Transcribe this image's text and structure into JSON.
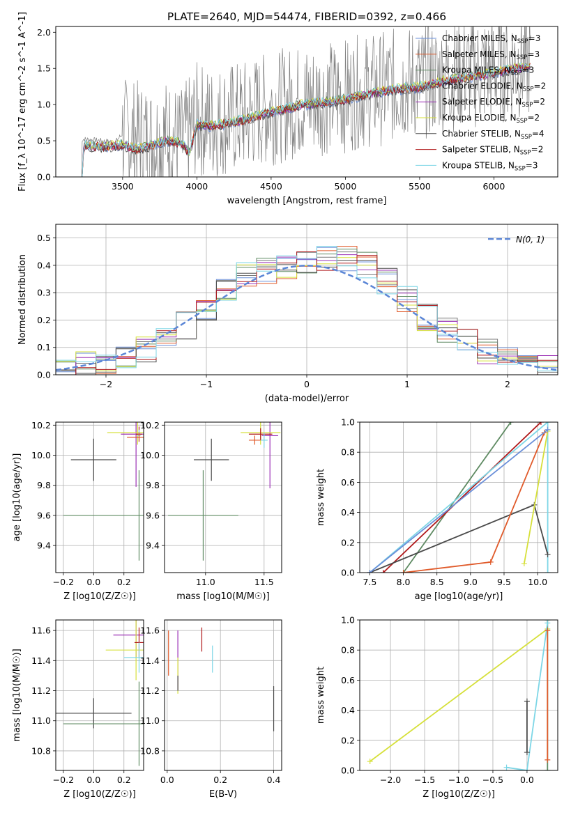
{
  "chart_data": [
    {
      "id": "spectrum",
      "type": "line",
      "title": "PLATE=2640, MJD=54474, FIBERID=0392, z=0.466",
      "xlabel": "wavelength [Angstrom, rest frame]",
      "ylabel": "Flux [f_λ 10^-17 erg cm^-2 s^-1 A^-1]",
      "xlim": [
        3050,
        6430
      ],
      "ylim": [
        0,
        2.08
      ],
      "xticks": [
        "3500",
        "4000",
        "4500",
        "5000",
        "5500",
        "6000"
      ],
      "yticks": [
        "0.0",
        "0.5",
        "1.0",
        "1.5",
        "2.0"
      ],
      "grid": false,
      "legend_position": "upper-right",
      "legend": [
        {
          "label": "Chabrier MILES, N_SSP=3",
          "color": "#6a8fd9"
        },
        {
          "label": "Salpeter MILES, N_SSP=3",
          "color": "#e05a2a"
        },
        {
          "label": "Kroupa MILES, N_SSP=3",
          "color": "#5e8a62"
        },
        {
          "label": "Chabrier ELODIE, N_SSP=2",
          "color": "#7a7a7a"
        },
        {
          "label": "Salpeter ELODIE, N_SSP=2",
          "color": "#9b30b5"
        },
        {
          "label": "Kroupa ELODIE, N_SSP=2",
          "color": "#d6e03a"
        },
        {
          "label": "Chabrier STELIB, N_SSP=4",
          "color": "#4a4a4a"
        },
        {
          "label": "Salpeter STELIB, N_SSP=2",
          "color": "#b0181a"
        },
        {
          "label": "Kroupa STELIB, N_SSP=3",
          "color": "#7dd6e6"
        }
      ],
      "model_continuum": {
        "x": [
          3220,
          3240,
          3300,
          3400,
          3500,
          3600,
          3700,
          3800,
          3900,
          3950,
          4000,
          4100,
          4200,
          4300,
          4400,
          4500,
          4600,
          4700,
          4800,
          4900,
          5000,
          5100,
          5200,
          5300,
          5400,
          5500,
          5600,
          5700,
          5800,
          5900,
          6000,
          6100,
          6200
        ],
        "y": [
          0.0,
          0.42,
          0.4,
          0.4,
          0.42,
          0.36,
          0.42,
          0.48,
          0.44,
          0.3,
          0.7,
          0.68,
          0.72,
          0.76,
          0.82,
          0.88,
          0.92,
          0.97,
          1.0,
          1.02,
          1.05,
          1.1,
          1.14,
          1.18,
          1.2,
          1.22,
          1.27,
          1.32,
          1.35,
          1.38,
          1.42,
          1.46,
          1.5
        ]
      },
      "observed_data": {
        "x": [
          3250,
          3350,
          3450,
          3500,
          3600,
          3700,
          3800,
          3900,
          4000,
          4100,
          4200,
          4300,
          4400,
          4500,
          4600,
          4700,
          4800,
          4900,
          5000,
          5100,
          5200,
          5300,
          5400,
          5500,
          5600,
          5700,
          5800,
          5900,
          6000,
          6100,
          6200
        ],
        "y": [
          0.52,
          0.5,
          0.48,
          0.6,
          0.55,
          0.5,
          0.58,
          0.45,
          0.8,
          0.75,
          0.8,
          0.82,
          0.9,
          0.95,
          1.0,
          1.05,
          1.08,
          1.1,
          1.12,
          1.18,
          1.2,
          1.25,
          1.3,
          1.3,
          1.35,
          1.4,
          1.45,
          1.45,
          1.5,
          1.55,
          1.6
        ]
      }
    },
    {
      "id": "residuals",
      "type": "line",
      "xlabel": "(data-model)/error",
      "ylabel": "Normed distribution",
      "xlim": [
        -2.5,
        2.5
      ],
      "ylim": [
        0,
        0.55
      ],
      "xticks": [
        "−2",
        "−1",
        "0",
        "1",
        "2"
      ],
      "yticks": [
        "0.0",
        "0.1",
        "0.2",
        "0.3",
        "0.4",
        "0.5"
      ],
      "grid": true,
      "legend_position": "upper-right",
      "legend": [
        {
          "label": "N(0, 1)",
          "color": "#5b86d6"
        }
      ],
      "hist_edges": [
        -2.5,
        -2.3,
        -2.1,
        -1.9,
        -1.7,
        -1.5,
        -1.3,
        -1.1,
        -0.9,
        -0.7,
        -0.5,
        -0.3,
        -0.1,
        0.1,
        0.3,
        0.5,
        0.7,
        0.9,
        1.1,
        1.3,
        1.5,
        1.7,
        1.9,
        2.1,
        2.3,
        2.5
      ],
      "hist_counts": [
        0.02,
        0.04,
        0.05,
        0.07,
        0.09,
        0.12,
        0.18,
        0.24,
        0.3,
        0.36,
        0.38,
        0.4,
        0.42,
        0.43,
        0.42,
        0.4,
        0.34,
        0.28,
        0.21,
        0.16,
        0.12,
        0.08,
        0.06,
        0.04,
        0.03
      ],
      "gaussian": true
    },
    {
      "id": "age_vs_Z",
      "type": "scatter",
      "xlabel": "Z [log10(Z/Z☉)]",
      "ylabel": "age [log10(age/yr)]",
      "xlim": [
        -0.25,
        0.33
      ],
      "ylim": [
        9.22,
        10.22
      ],
      "xticks": [
        "−0.2",
        "0.0",
        "0.2"
      ],
      "yticks": [
        "9.4",
        "9.6",
        "9.8",
        "10.0",
        "10.2"
      ],
      "grid": true,
      "points": [
        {
          "x": 0.0,
          "y": 9.97,
          "xerr": 0.15,
          "yerr": 0.14,
          "color": "#4a4a4a"
        },
        {
          "x": 0.3,
          "y": 9.6,
          "xerr": 0.5,
          "yerr": 0.3,
          "color": "#5e8a62"
        },
        {
          "x": 0.28,
          "y": 10.14,
          "xerr": 0.1,
          "yerr": 0.35,
          "color": "#9b30b5"
        },
        {
          "x": 0.29,
          "y": 10.15,
          "xerr": 0.2,
          "yerr": 0.08,
          "color": "#d6e03a"
        },
        {
          "x": 0.3,
          "y": 10.14,
          "xerr": 0.02,
          "yerr": 0.05,
          "color": "#b0181a"
        },
        {
          "x": 0.3,
          "y": 10.13,
          "xerr": 0.01,
          "yerr": 0.04,
          "color": "#7dd6e6"
        },
        {
          "x": 0.3,
          "y": 10.12,
          "xerr": 0.08,
          "yerr": 0.03,
          "color": "#e05a2a"
        }
      ]
    },
    {
      "id": "age_vs_mass",
      "type": "scatter",
      "xlabel": "mass [log10(M/M☉)]",
      "ylabel": "",
      "xlim": [
        10.65,
        11.65
      ],
      "ylim": [
        9.22,
        10.22
      ],
      "xticks": [
        "11.0",
        "11.5"
      ],
      "yticks": [
        "9.4",
        "9.6",
        "9.8",
        "10.0",
        "10.2"
      ],
      "grid": true,
      "points": [
        {
          "x": 11.05,
          "y": 9.97,
          "xerr": 0.15,
          "yerr": 0.14,
          "color": "#4a4a4a"
        },
        {
          "x": 10.98,
          "y": 9.6,
          "xerr": 0.3,
          "yerr": 0.3,
          "color": "#5e8a62"
        },
        {
          "x": 11.55,
          "y": 10.13,
          "xerr": 0.07,
          "yerr": 0.35,
          "color": "#9b30b5"
        },
        {
          "x": 11.47,
          "y": 10.15,
          "xerr": 0.17,
          "yerr": 0.08,
          "color": "#d6e03a"
        },
        {
          "x": 11.47,
          "y": 10.14,
          "xerr": 0.1,
          "yerr": 0.04,
          "color": "#b0181a"
        },
        {
          "x": 11.5,
          "y": 10.1,
          "xerr": 0.03,
          "yerr": 0.05,
          "color": "#7dd6e6"
        },
        {
          "x": 11.42,
          "y": 10.1,
          "xerr": 0.05,
          "yerr": 0.03,
          "color": "#e05a2a"
        }
      ]
    },
    {
      "id": "mass_weight_vs_age",
      "type": "line",
      "xlabel": "age [log10(age/yr)]",
      "ylabel": "mass weight",
      "xlim": [
        7.35,
        10.3
      ],
      "ylim": [
        0,
        1
      ],
      "xticks": [
        "7.5",
        "8.0",
        "8.5",
        "9.0",
        "9.5",
        "10.0"
      ],
      "yticks": [
        "0.0",
        "0.2",
        "0.4",
        "0.6",
        "0.8",
        "1.0"
      ],
      "grid": true,
      "series": [
        {
          "color": "#5e8a62",
          "x": [
            8.0,
            9.6
          ],
          "y": [
            0.0,
            1.0
          ]
        },
        {
          "color": "#b0181a",
          "x": [
            7.7,
            10.05
          ],
          "y": [
            0.0,
            1.0
          ]
        },
        {
          "color": "#7dd6e6",
          "x": [
            7.5,
            10.15,
            10.15
          ],
          "y": [
            0.0,
            1.0,
            0.0
          ]
        },
        {
          "color": "#4a4a4a",
          "x": [
            7.5,
            9.95,
            10.15
          ],
          "y": [
            0.0,
            0.45,
            0.12
          ]
        },
        {
          "color": "#e05a2a",
          "x": [
            8.0,
            9.3,
            10.1
          ],
          "y": [
            0.0,
            0.07,
            0.93
          ]
        },
        {
          "color": "#d6e03a",
          "x": [
            9.8,
            10.15
          ],
          "y": [
            0.06,
            0.94
          ]
        },
        {
          "color": "#6a8fd9",
          "x": [
            7.5,
            10.15
          ],
          "y": [
            0.0,
            0.95
          ]
        }
      ]
    },
    {
      "id": "mass_vs_Z",
      "type": "scatter",
      "xlabel": "Z [log10(Z/Z☉)]",
      "ylabel": "mass [log10(M/M☉)]",
      "xlim": [
        -0.25,
        0.33
      ],
      "ylim": [
        10.67,
        11.67
      ],
      "xticks": [
        "−0.2",
        "0.0",
        "0.2"
      ],
      "yticks": [
        "10.8",
        "11.0",
        "11.2",
        "11.4",
        "11.6"
      ],
      "grid": true,
      "points": [
        {
          "x": 0.0,
          "y": 11.05,
          "xerr": 0.25,
          "yerr": 0.1,
          "color": "#4a4a4a"
        },
        {
          "x": 0.3,
          "y": 10.98,
          "xerr": 0.5,
          "yerr": 0.28,
          "color": "#5e8a62"
        },
        {
          "x": 0.28,
          "y": 11.57,
          "xerr": 0.15,
          "yerr": 0.15,
          "color": "#9b30b5"
        },
        {
          "x": 0.28,
          "y": 11.47,
          "xerr": 0.2,
          "yerr": 0.2,
          "color": "#d6e03a"
        },
        {
          "x": 0.3,
          "y": 11.52,
          "xerr": 0.03,
          "yerr": 0.1,
          "color": "#b0181a"
        },
        {
          "x": 0.3,
          "y": 11.42,
          "xerr": 0.1,
          "yerr": 0.1,
          "color": "#7dd6e6"
        }
      ]
    },
    {
      "id": "mass_vs_EBV",
      "type": "scatter",
      "xlabel": "E(B-V)",
      "ylabel": "",
      "xlim": [
        -0.01,
        0.43
      ],
      "ylim": [
        10.67,
        11.67
      ],
      "xticks": [
        "0.0",
        "0.2",
        "0.4"
      ],
      "yticks": [
        "10.8",
        "11.0",
        "11.2",
        "11.4",
        "11.6"
      ],
      "grid": true,
      "points": [
        {
          "x": 0.4,
          "y": 11.08,
          "yerr": 0.15,
          "color": "#4a4a4a"
        },
        {
          "x": 0.005,
          "y": 11.45,
          "yerr": 0.15,
          "color": "#e05a2a"
        },
        {
          "x": 0.04,
          "y": 11.4,
          "yerr": 0.2,
          "color": "#9b30b5"
        },
        {
          "x": 0.04,
          "y": 11.3,
          "yerr": 0.12,
          "color": "#d6e03a"
        },
        {
          "x": 0.13,
          "y": 11.54,
          "yerr": 0.08,
          "color": "#b0181a"
        },
        {
          "x": 0.17,
          "y": 11.41,
          "yerr": 0.09,
          "color": "#7dd6e6"
        },
        {
          "x": 0.04,
          "y": 11.25,
          "yerr": 0.05,
          "color": "#4a4a4a"
        }
      ]
    },
    {
      "id": "mass_weight_vs_Z",
      "type": "line",
      "xlabel": "Z [log10(Z/Z☉)]",
      "ylabel": "mass weight",
      "xlim": [
        -2.45,
        0.45
      ],
      "ylim": [
        0,
        1
      ],
      "xticks": [
        "−2.0",
        "−1.5",
        "−1.0",
        "−0.5",
        "0.0"
      ],
      "yticks": [
        "0.0",
        "0.2",
        "0.4",
        "0.6",
        "0.8",
        "1.0"
      ],
      "grid": true,
      "series": [
        {
          "color": "#d6e03a",
          "x": [
            -2.3,
            0.3
          ],
          "y": [
            0.06,
            0.94
          ]
        },
        {
          "color": "#5e8a62",
          "x": [
            0.3,
            0.3
          ],
          "y": [
            0.0,
            1.0
          ]
        },
        {
          "color": "#7dd6e6",
          "x": [
            -0.3,
            0.0,
            0.3
          ],
          "y": [
            0.02,
            0.0,
            0.98
          ]
        },
        {
          "color": "#4a4a4a",
          "x": [
            0.0,
            0.0
          ],
          "y": [
            0.12,
            0.46
          ]
        },
        {
          "color": "#e05a2a",
          "x": [
            0.3,
            0.3
          ],
          "y": [
            0.07,
            0.93
          ]
        }
      ]
    }
  ]
}
